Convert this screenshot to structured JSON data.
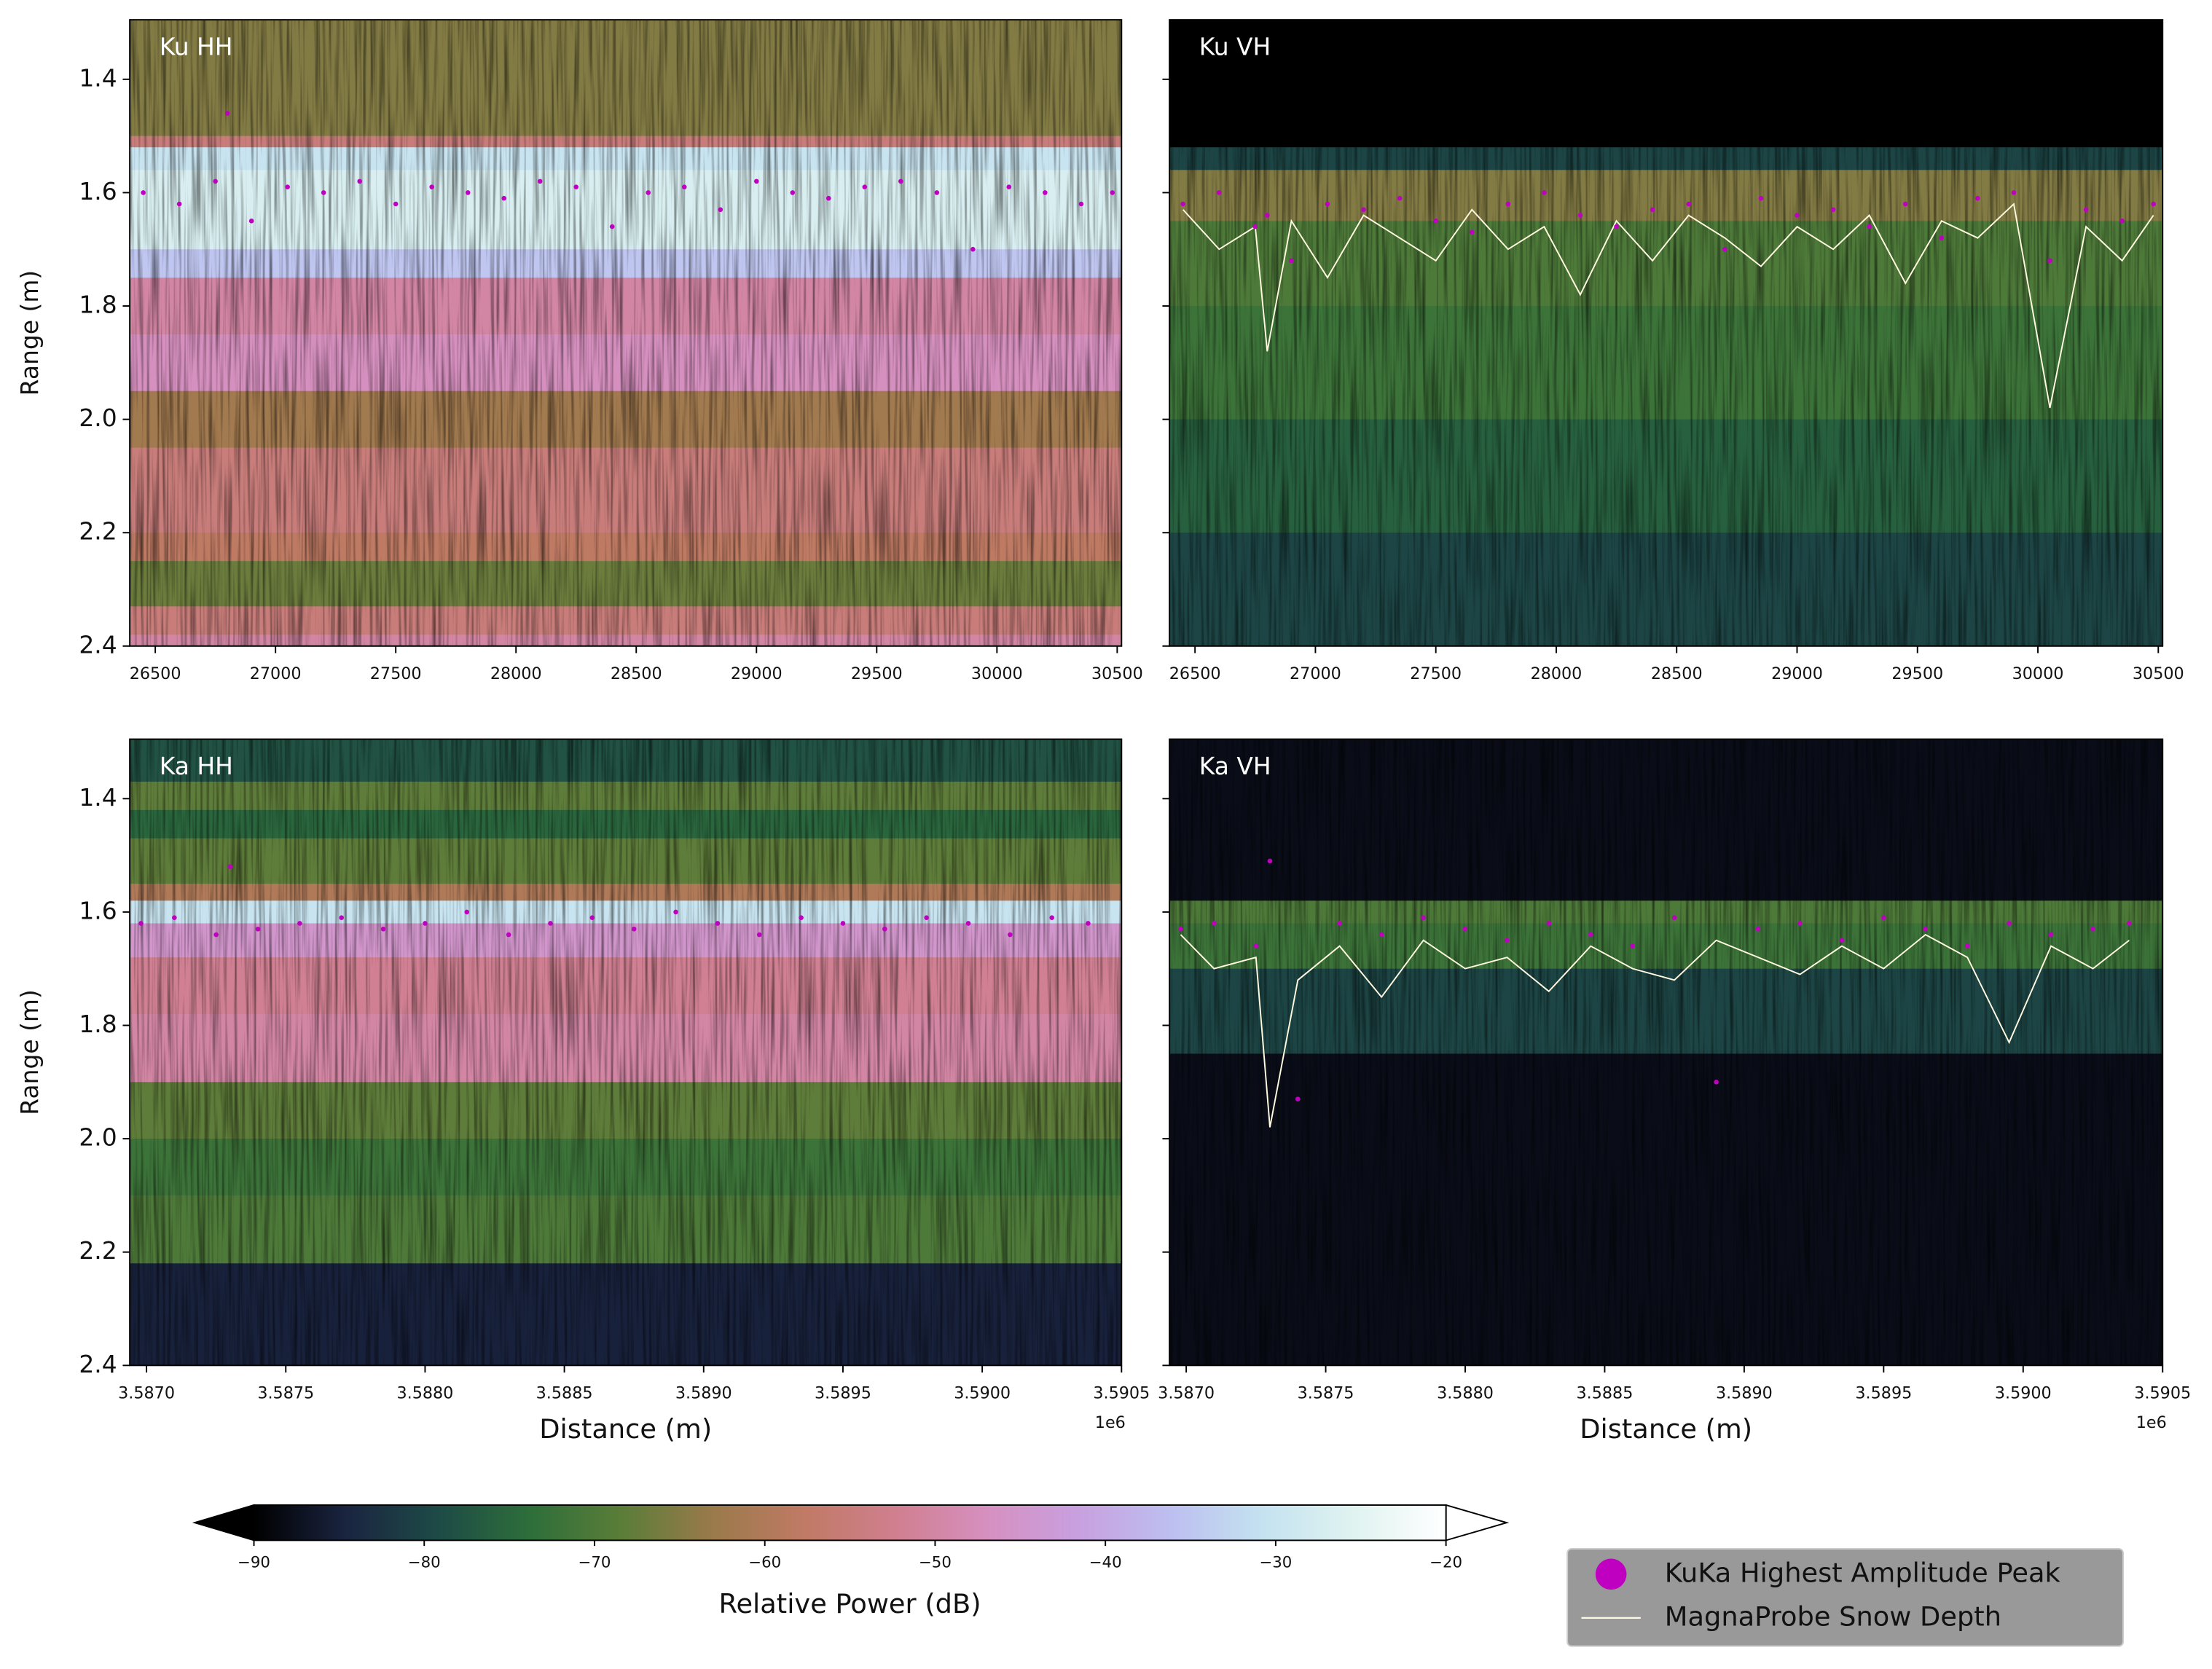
{
  "chart_data": [
    {
      "type": "echogram",
      "title": "Ku HH",
      "ylabel": "Range (m)",
      "xlim": [
        26394,
        30518
      ],
      "xticks": [
        26500,
        27000,
        27500,
        28000,
        28500,
        29000,
        29500,
        30000,
        30500
      ],
      "ylim": [
        2.4,
        1.295
      ],
      "yticks": [
        1.4,
        1.6,
        1.8,
        {
          "value": 2,
          "label": "2.0"
        },
        2.2,
        2.4
      ],
      "show_ytick_labels": true,
      "profile": {
        "range": [
          1.295,
          1.5,
          1.52,
          1.56,
          1.7,
          1.75,
          1.85,
          1.95,
          2.05,
          2.2,
          2.25,
          2.33,
          2.38,
          2.4
        ],
        "power": [
          -65,
          -55,
          -30,
          -27,
          -35,
          -50,
          -47,
          -62,
          -55,
          -58,
          -67,
          -55,
          -50
        ]
      },
      "series": [
        {
          "type": "scatter",
          "color": "#c000c0",
          "x": [
            26450,
            26600,
            26750,
            26800,
            26900,
            27050,
            27200,
            27350,
            27500,
            27650,
            27800,
            27950,
            28100,
            28250,
            28400,
            28550,
            28700,
            28850,
            29000,
            29150,
            29300,
            29450,
            29600,
            29750,
            29900,
            30050,
            30200,
            30350,
            30480
          ],
          "values": [
            1.6,
            1.62,
            1.58,
            1.46,
            1.65,
            1.59,
            1.6,
            1.58,
            1.62,
            1.59,
            1.6,
            1.61,
            1.58,
            1.59,
            1.66,
            1.6,
            1.59,
            1.63,
            1.58,
            1.6,
            1.61,
            1.59,
            1.58,
            1.6,
            1.7,
            1.59,
            1.6,
            1.62,
            1.6
          ]
        }
      ]
    },
    {
      "type": "echogram",
      "title": "Ku VH",
      "xlim": [
        26394,
        30518
      ],
      "xticks": [
        26500,
        27000,
        27500,
        28000,
        28500,
        29000,
        29500,
        30000,
        30500
      ],
      "ylim": [
        2.4,
        1.295
      ],
      "yticks": [
        1.4,
        1.6,
        1.8,
        {
          "value": 2,
          "label": "2.0"
        },
        2.2,
        2.4
      ],
      "show_ytick_labels": false,
      "profile": {
        "range": [
          1.295,
          1.52,
          1.56,
          1.65,
          1.8,
          2.0,
          2.2,
          2.4
        ],
        "power": [
          -90,
          -80,
          -65,
          -70,
          -72,
          -76,
          -80
        ]
      },
      "series": [
        {
          "type": "scatter",
          "name": "KuKa Highest Amplitude Peak",
          "color": "#c000c0",
          "x": [
            26450,
            26600,
            26750,
            26800,
            26900,
            27050,
            27200,
            27350,
            27500,
            27650,
            27800,
            27950,
            28100,
            28250,
            28400,
            28550,
            28700,
            28850,
            29000,
            29150,
            29300,
            29450,
            29600,
            29750,
            29900,
            30050,
            30200,
            30350,
            30480
          ],
          "values": [
            1.62,
            1.6,
            1.66,
            1.64,
            1.72,
            1.62,
            1.63,
            1.61,
            1.65,
            1.67,
            1.62,
            1.6,
            1.64,
            1.66,
            1.63,
            1.62,
            1.7,
            1.61,
            1.64,
            1.63,
            1.66,
            1.62,
            1.68,
            1.61,
            1.6,
            1.72,
            1.63,
            1.65,
            1.62
          ]
        },
        {
          "type": "line",
          "name": "MagnaProbe Snow Depth",
          "color": "#fffbe0",
          "x": [
            26450,
            26600,
            26750,
            26800,
            26900,
            27050,
            27200,
            27350,
            27500,
            27650,
            27800,
            27950,
            28100,
            28250,
            28400,
            28550,
            28700,
            28850,
            29000,
            29150,
            29300,
            29450,
            29600,
            29750,
            29900,
            30050,
            30200,
            30350,
            30480
          ],
          "values": [
            1.63,
            1.7,
            1.66,
            1.88,
            1.65,
            1.75,
            1.64,
            1.68,
            1.72,
            1.63,
            1.7,
            1.66,
            1.78,
            1.65,
            1.72,
            1.64,
            1.68,
            1.73,
            1.66,
            1.7,
            1.64,
            1.76,
            1.65,
            1.68,
            1.62,
            1.98,
            1.66,
            1.72,
            1.64
          ]
        }
      ]
    },
    {
      "type": "echogram",
      "title": "Ka HH",
      "ylabel": "Range (m)",
      "xlabel": "Distance (m)",
      "x_offset_label": "1e6",
      "xlim": [
        3586940,
        3590500
      ],
      "xticks": [
        {
          "value": 3587000,
          "label": "3.5870"
        },
        {
          "value": 3587500,
          "label": "3.5875"
        },
        {
          "value": 3588000,
          "label": "3.5880"
        },
        {
          "value": 3588500,
          "label": "3.5885"
        },
        {
          "value": 3589000,
          "label": "3.5890"
        },
        {
          "value": 3589500,
          "label": "3.5895"
        },
        {
          "value": 3590000,
          "label": "3.5900"
        },
        {
          "value": 3590500,
          "label": "3.5905"
        }
      ],
      "ylim": [
        2.4,
        1.295
      ],
      "yticks": [
        1.4,
        1.6,
        1.8,
        {
          "value": 2,
          "label": "2.0"
        },
        2.2,
        2.4
      ],
      "show_ytick_labels": true,
      "profile": {
        "range": [
          1.295,
          1.37,
          1.42,
          1.47,
          1.55,
          1.58,
          1.62,
          1.68,
          1.78,
          1.9,
          2.0,
          2.1,
          2.22,
          2.4
        ],
        "power": [
          -78,
          -68,
          -75,
          -68,
          -60,
          -30,
          -45,
          -52,
          -50,
          -68,
          -72,
          -70,
          -85
        ]
      },
      "series": [
        {
          "type": "scatter",
          "color": "#c000c0",
          "x": [
            3586980,
            3587100,
            3587250,
            3587300,
            3587400,
            3587550,
            3587700,
            3587850,
            3588000,
            3588150,
            3588300,
            3588450,
            3588600,
            3588750,
            3588900,
            3589050,
            3589200,
            3589350,
            3589500,
            3589650,
            3589800,
            3589950,
            3590100,
            3590250,
            3590380
          ],
          "values": [
            1.62,
            1.61,
            1.64,
            1.52,
            1.63,
            1.62,
            1.61,
            1.63,
            1.62,
            1.6,
            1.64,
            1.62,
            1.61,
            1.63,
            1.6,
            1.62,
            1.64,
            1.61,
            1.62,
            1.63,
            1.61,
            1.62,
            1.64,
            1.61,
            1.62
          ]
        }
      ]
    },
    {
      "type": "echogram",
      "title": "Ka VH",
      "xlabel": "Distance (m)",
      "x_offset_label": "1e6",
      "xlim": [
        3586940,
        3590500
      ],
      "xticks": [
        {
          "value": 3587000,
          "label": "3.5870"
        },
        {
          "value": 3587500,
          "label": "3.5875"
        },
        {
          "value": 3588000,
          "label": "3.5880"
        },
        {
          "value": 3588500,
          "label": "3.5885"
        },
        {
          "value": 3589000,
          "label": "3.5890"
        },
        {
          "value": 3589500,
          "label": "3.5895"
        },
        {
          "value": 3590000,
          "label": "3.5900"
        },
        {
          "value": 3590500,
          "label": "3.5905"
        }
      ],
      "ylim": [
        2.4,
        1.295
      ],
      "yticks": [
        1.4,
        1.6,
        1.8,
        {
          "value": 2,
          "label": "2.0"
        },
        2.2,
        2.4
      ],
      "show_ytick_labels": false,
      "profile": {
        "range": [
          1.295,
          1.58,
          1.62,
          1.7,
          1.85,
          2.4
        ],
        "power": [
          -88,
          -70,
          -72,
          -80,
          -88
        ]
      },
      "series": [
        {
          "type": "scatter",
          "color": "#c000c0",
          "x": [
            3586980,
            3587100,
            3587250,
            3587300,
            3587400,
            3587550,
            3587700,
            3587850,
            3588000,
            3588150,
            3588300,
            3588450,
            3588600,
            3588750,
            3588900,
            3589050,
            3589200,
            3589350,
            3589500,
            3589650,
            3589800,
            3589950,
            3590100,
            3590250,
            3590380
          ],
          "values": [
            1.63,
            1.62,
            1.66,
            1.51,
            1.93,
            1.62,
            1.64,
            1.61,
            1.63,
            1.65,
            1.62,
            1.64,
            1.66,
            1.61,
            1.9,
            1.63,
            1.62,
            1.65,
            1.61,
            1.63,
            1.66,
            1.62,
            1.64,
            1.63,
            1.62
          ]
        },
        {
          "type": "line",
          "color": "#fffbe0",
          "x": [
            3586980,
            3587100,
            3587250,
            3587300,
            3587400,
            3587550,
            3587700,
            3587850,
            3588000,
            3588150,
            3588300,
            3588450,
            3588600,
            3588750,
            3588900,
            3589050,
            3589200,
            3589350,
            3589500,
            3589650,
            3589800,
            3589950,
            3590100,
            3590250,
            3590380
          ],
          "values": [
            1.64,
            1.7,
            1.68,
            1.98,
            1.72,
            1.66,
            1.75,
            1.65,
            1.7,
            1.68,
            1.74,
            1.66,
            1.7,
            1.72,
            1.65,
            1.68,
            1.71,
            1.66,
            1.7,
            1.64,
            1.68,
            1.83,
            1.66,
            1.7,
            1.65
          ]
        }
      ]
    },
    {
      "type": "colorbar",
      "xlabel": "Relative Power (dB)",
      "xlim": [
        -90,
        -20
      ],
      "extend": "both",
      "xticks": [
        {
          "value": -90,
          "label": "−90"
        },
        {
          "value": -80,
          "label": "−80"
        },
        {
          "value": -70,
          "label": "−70"
        },
        {
          "value": -60,
          "label": "−60"
        },
        {
          "value": -50,
          "label": "−50"
        },
        {
          "value": -40,
          "label": "−40"
        },
        {
          "value": -30,
          "label": "−30"
        },
        {
          "value": -20,
          "label": "−20"
        }
      ],
      "colormap": [
        "#000000",
        "#1a2440",
        "#1d4a46",
        "#2d6e3a",
        "#5a7d38",
        "#9a7a4a",
        "#c07a65",
        "#d07f8f",
        "#d690c0",
        "#c8a0e0",
        "#bdbff0",
        "#c4e2f0",
        "#e0f3f0",
        "#ffffff"
      ]
    }
  ]
}
